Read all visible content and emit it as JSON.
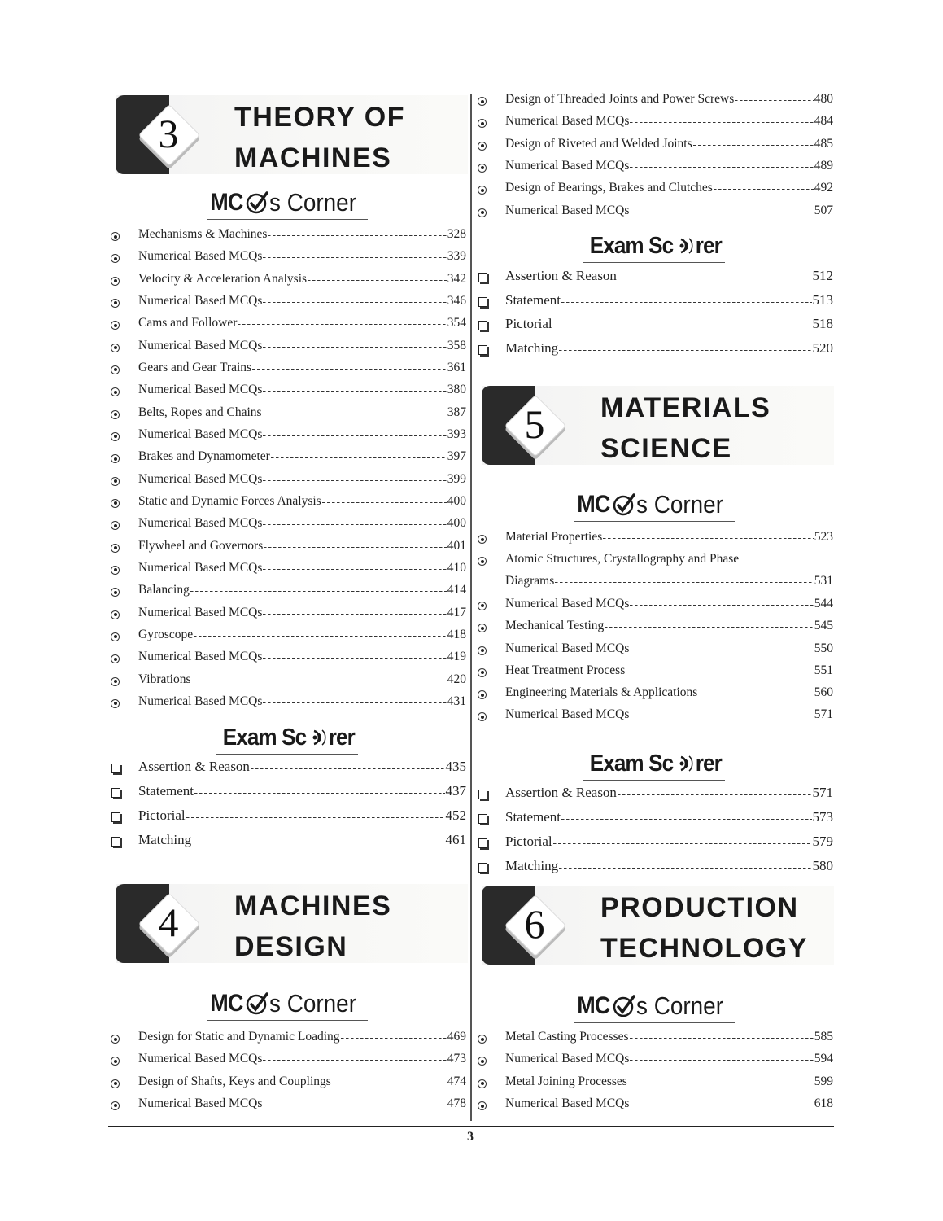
{
  "page_number": "3",
  "logos": {
    "mcq": "MCQs Corner",
    "scorer": "Exam Scorer"
  },
  "columns": [
    {
      "blocks": [
        {
          "type": "chapter",
          "number": "3",
          "title_lines": [
            "THEORY OF",
            "MACHINES"
          ]
        },
        {
          "type": "mcq_heading"
        },
        {
          "type": "topics",
          "items": [
            {
              "title": "Mechanisms & Machines",
              "page": "328"
            },
            {
              "title": "Numerical Based MCQs",
              "page": "339"
            },
            {
              "title": "Velocity & Acceleration Analysis",
              "page": "342"
            },
            {
              "title": "Numerical Based MCQs",
              "page": "346"
            },
            {
              "title": "Cams and Follower",
              "page": "354"
            },
            {
              "title": "Numerical Based MCQs",
              "page": "358"
            },
            {
              "title": "Gears and Gear Trains",
              "page": "361"
            },
            {
              "title": "Numerical Based MCQs",
              "page": "380"
            },
            {
              "title": "Belts, Ropes and Chains",
              "page": "387"
            },
            {
              "title": "Numerical Based MCQs",
              "page": "393"
            },
            {
              "title": "Brakes and Dynamometer",
              "page": "397"
            },
            {
              "title": "Numerical Based MCQs",
              "page": "399"
            },
            {
              "title": "Static and Dynamic Forces Analysis",
              "page": "400"
            },
            {
              "title": "Numerical Based MCQs",
              "page": "400"
            },
            {
              "title": "Flywheel and Governors",
              "page": "401"
            },
            {
              "title": "Numerical Based MCQs",
              "page": "410"
            },
            {
              "title": "Balancing",
              "page": "414"
            },
            {
              "title": "Numerical Based MCQs",
              "page": "417"
            },
            {
              "title": "Gyroscope",
              "page": "418"
            },
            {
              "title": "Numerical Based MCQs",
              "page": "419"
            },
            {
              "title": "Vibrations",
              "page": "420"
            },
            {
              "title": "Numerical Based MCQs",
              "page": "431"
            }
          ]
        },
        {
          "type": "scorer_heading"
        },
        {
          "type": "scorer",
          "items": [
            {
              "title": "Assertion & Reason",
              "page": "435"
            },
            {
              "title": "Statement",
              "page": "437"
            },
            {
              "title": "Pictorial",
              "page": "452"
            },
            {
              "title": "Matching",
              "page": "461"
            }
          ]
        },
        {
          "type": "chapter",
          "number": "4",
          "title_lines": [
            "MACHINES",
            "DESIGN"
          ]
        },
        {
          "type": "mcq_heading"
        },
        {
          "type": "topics",
          "items": [
            {
              "title": "Design for Static and Dynamic Loading",
              "page": "469"
            },
            {
              "title": "Numerical Based MCQs",
              "page": "473"
            },
            {
              "title": "Design of Shafts, Keys and Couplings",
              "page": "474"
            },
            {
              "title": "Numerical Based MCQs",
              "page": "478"
            }
          ]
        }
      ]
    },
    {
      "blocks": [
        {
          "type": "topics",
          "items": [
            {
              "title": "Design of Threaded Joints and Power Screws",
              "page": "480"
            },
            {
              "title": "Numerical Based MCQs",
              "page": "484"
            },
            {
              "title": "Design of Riveted and Welded Joints",
              "page": "485"
            },
            {
              "title": "Numerical Based MCQs",
              "page": "489"
            },
            {
              "title": "Design of Bearings, Brakes and Clutches",
              "page": "492"
            },
            {
              "title": "Numerical Based MCQs",
              "page": "507"
            }
          ]
        },
        {
          "type": "scorer_heading"
        },
        {
          "type": "scorer",
          "items": [
            {
              "title": "Assertion & Reason",
              "page": "512"
            },
            {
              "title": "Statement",
              "page": "513"
            },
            {
              "title": "Pictorial",
              "page": "518"
            },
            {
              "title": "Matching",
              "page": "520"
            }
          ]
        },
        {
          "type": "chapter",
          "number": "5",
          "title_lines": [
            "MATERIALS",
            "SCIENCE"
          ]
        },
        {
          "type": "mcq_heading"
        },
        {
          "type": "topics",
          "items": [
            {
              "title": "Material Properties",
              "page": "523"
            },
            {
              "title": "Atomic Structures, Crystallography and Phase Diagrams",
              "page": "531"
            },
            {
              "title": "Numerical Based MCQs",
              "page": "544"
            },
            {
              "title": "Mechanical Testing",
              "page": "545"
            },
            {
              "title": "Numerical Based MCQs",
              "page": "550"
            },
            {
              "title": "Heat Treatment Process",
              "page": "551"
            },
            {
              "title": "Engineering Materials & Applications",
              "page": "560"
            },
            {
              "title": "Numerical Based MCQs",
              "page": "571"
            }
          ]
        },
        {
          "type": "scorer_heading"
        },
        {
          "type": "scorer",
          "items": [
            {
              "title": "Assertion & Reason",
              "page": "571"
            },
            {
              "title": "Statement",
              "page": "573"
            },
            {
              "title": "Pictorial",
              "page": "579"
            },
            {
              "title": "Matching",
              "page": "580"
            }
          ]
        },
        {
          "type": "chapter",
          "number": "6",
          "title_lines": [
            "PRODUCTION",
            "TECHNOLOGY"
          ]
        },
        {
          "type": "mcq_heading"
        },
        {
          "type": "topics",
          "items": [
            {
              "title": "Metal Casting Processes",
              "page": "585"
            },
            {
              "title": "Numerical Based MCQs",
              "page": "594"
            },
            {
              "title": "Metal Joining Processes",
              "page": "599"
            },
            {
              "title": "Numerical Based MCQs",
              "page": "618"
            }
          ]
        }
      ]
    }
  ]
}
